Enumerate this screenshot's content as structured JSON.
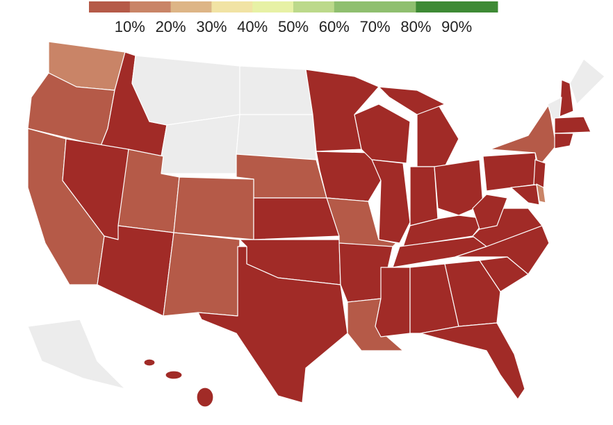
{
  "legend": {
    "colors": [
      "#b55a48",
      "#c98467",
      "#ddb586",
      "#f1e3a4",
      "#e7f1a5",
      "#bcd98b",
      "#8fbf6f",
      "#8fbf6f",
      "#3e8a35",
      "#3e8a35"
    ],
    "xlim": [
      0,
      100
    ],
    "ticks": [
      {
        "value": 10,
        "label": "10%"
      },
      {
        "value": 20,
        "label": "20%"
      },
      {
        "value": 30,
        "label": "30%"
      },
      {
        "value": 40,
        "label": "40%"
      },
      {
        "value": 50,
        "label": "50%"
      },
      {
        "value": 60,
        "label": "60%"
      },
      {
        "value": 70,
        "label": "70%"
      },
      {
        "value": 80,
        "label": "80%"
      },
      {
        "value": 90,
        "label": "90%"
      }
    ]
  }
}
